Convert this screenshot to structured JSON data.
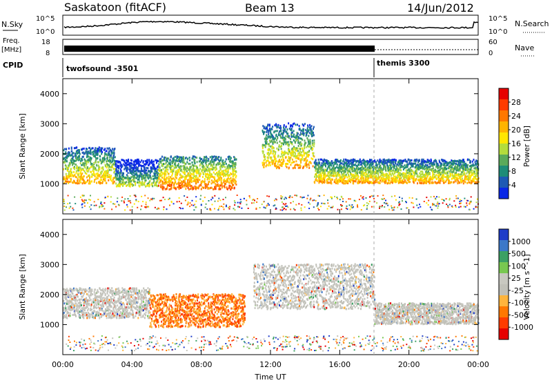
{
  "header": {
    "station": "Saskatoon (fitACF)",
    "beam": "Beam 13",
    "date": "14/Jun/2012"
  },
  "noise_panel": {
    "left_label": "N.Sky",
    "right_label": "N.Search",
    "left_ticks": [
      "10^5",
      "10^0"
    ],
    "right_ticks": [
      "10^5",
      "10^0"
    ]
  },
  "freq_panel": {
    "left_label_top": "Freq.",
    "left_label_unit": "[MHz]",
    "left_ticks": [
      "18",
      "8"
    ],
    "right_label": "Nave",
    "right_ticks": [
      "60",
      "0"
    ]
  },
  "cpid_panel": {
    "label": "CPID",
    "segments": [
      {
        "name": "twofsound -3501",
        "start_hour": 0,
        "end_hour": 18
      },
      {
        "name": "themis 3300",
        "start_hour": 18,
        "end_hour": 24
      }
    ]
  },
  "chart_data": [
    {
      "type": "heatmap",
      "name": "Power",
      "xlabel": "",
      "ylabel": "Slant Range [km]",
      "xlim": [
        0,
        24
      ],
      "ylim": [
        0,
        4500
      ],
      "yticks": [
        "1000",
        "2000",
        "3000",
        "4000"
      ],
      "colorbar": {
        "label": "Power [dB]",
        "ticks": [
          "28",
          "24",
          "20",
          "16",
          "12",
          "8",
          "4"
        ],
        "colors": [
          "#e60000",
          "#ff3c00",
          "#ff7800",
          "#ffb400",
          "#ffe600",
          "#b4dc3c",
          "#5aaa5a",
          "#1e8c78",
          "#1e5ab4",
          "#0a28e6"
        ]
      },
      "bands": [
        {
          "start_hour": 0.0,
          "end_hour": 3.0,
          "range_km": [
            1000,
            2200
          ],
          "level": "mid-high"
        },
        {
          "start_hour": 3.0,
          "end_hour": 5.5,
          "range_km": [
            900,
            1800
          ],
          "level": "mid"
        },
        {
          "start_hour": 5.5,
          "end_hour": 10.0,
          "range_km": [
            800,
            1900
          ],
          "level": "high"
        },
        {
          "start_hour": 11.5,
          "end_hour": 14.5,
          "range_km": [
            1500,
            3000
          ],
          "level": "mid-high"
        },
        {
          "start_hour": 14.5,
          "end_hour": 24.0,
          "range_km": [
            1000,
            1800
          ],
          "level": "mid-high"
        }
      ]
    },
    {
      "type": "heatmap",
      "name": "Velocity",
      "xlabel": "Time UT",
      "ylabel": "Slant Range [km]",
      "xlim": [
        0,
        24
      ],
      "ylim": [
        0,
        4500
      ],
      "xticks": [
        "00:00",
        "04:00",
        "08:00",
        "12:00",
        "16:00",
        "20:00",
        "00:00"
      ],
      "yticks": [
        "1000",
        "2000",
        "3000",
        "4000"
      ],
      "colorbar": {
        "label": "Velocity [m s^-1]",
        "ticks": [
          "1000",
          "500",
          "100",
          "25",
          "-25",
          "-100",
          "-500",
          "-1000"
        ],
        "colors": [
          "#1e3cc8",
          "#3c78c8",
          "#3ca064",
          "#78c850",
          "#c8c8c0",
          "#c0c0b8",
          "#ffb43c",
          "#ff7800",
          "#ff3c00",
          "#e60000"
        ]
      },
      "bands": [
        {
          "start_hour": 0.0,
          "end_hour": 5.0,
          "range_km": [
            1200,
            2200
          ],
          "level": "ground-gray"
        },
        {
          "start_hour": 5.0,
          "end_hour": 10.5,
          "range_km": [
            900,
            2000
          ],
          "level": "negative"
        },
        {
          "start_hour": 11.0,
          "end_hour": 18.0,
          "range_km": [
            1500,
            3000
          ],
          "level": "ground-gray"
        },
        {
          "start_hour": 18.0,
          "end_hour": 24.0,
          "range_km": [
            1000,
            1700
          ],
          "level": "ground-gray"
        }
      ]
    }
  ]
}
